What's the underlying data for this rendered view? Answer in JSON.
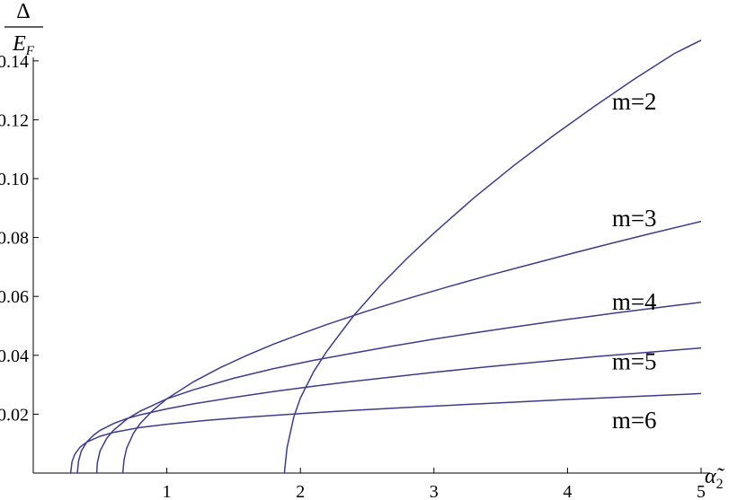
{
  "chart_data": {
    "type": "line",
    "xlabel_symbol": "α̃",
    "xlabel_subscript": "2",
    "ylabel_numerator": "Δ",
    "ylabel_denominator_main": "E",
    "ylabel_denominator_sub": "F",
    "xlim": [
      0,
      5
    ],
    "ylim": [
      0,
      0.15
    ],
    "x_ticks": [
      {
        "value": 1,
        "label": "1"
      },
      {
        "value": 2,
        "label": "2"
      },
      {
        "value": 3,
        "label": "3"
      },
      {
        "value": 4,
        "label": "4"
      },
      {
        "value": 5,
        "label": "5"
      }
    ],
    "y_ticks": [
      {
        "value": 0.02,
        "label": "0.02"
      },
      {
        "value": 0.04,
        "label": "0.04"
      },
      {
        "value": 0.06,
        "label": "0.06"
      },
      {
        "value": 0.08,
        "label": "0.08"
      },
      {
        "value": 0.1,
        "label": "0.10"
      },
      {
        "value": 0.12,
        "label": "0.12"
      },
      {
        "value": 0.14,
        "label": "0.14"
      }
    ],
    "series": [
      {
        "name": "m=2",
        "label_anchor": {
          "x": 4.5,
          "y": 0.1235
        },
        "x": [
          1.88,
          1.9,
          1.95,
          2.0,
          2.1,
          2.2,
          2.4,
          2.6,
          2.8,
          3.0,
          3.3,
          3.6,
          3.9,
          4.2,
          4.5,
          4.8,
          5.0
        ],
        "y": [
          0,
          0.0085,
          0.019,
          0.0255,
          0.0345,
          0.0415,
          0.0535,
          0.0638,
          0.073,
          0.0815,
          0.0935,
          0.1045,
          0.1148,
          0.1245,
          0.1338,
          0.1425,
          0.147
        ]
      },
      {
        "name": "m=3",
        "label_anchor": {
          "x": 4.5,
          "y": 0.0838
        },
        "x": [
          0.67,
          0.68,
          0.7,
          0.75,
          0.8,
          0.9,
          1.0,
          1.2,
          1.4,
          1.6,
          1.8,
          2.0,
          2.2,
          2.5,
          2.8,
          3.1,
          3.4,
          3.7,
          4.0,
          4.3,
          4.6,
          5.0
        ],
        "y": [
          0,
          0.0045,
          0.0085,
          0.0135,
          0.0168,
          0.0215,
          0.0252,
          0.031,
          0.0358,
          0.04,
          0.0438,
          0.0472,
          0.0505,
          0.055,
          0.0592,
          0.0632,
          0.067,
          0.0706,
          0.0742,
          0.0777,
          0.0811,
          0.0855
        ]
      },
      {
        "name": "m=4",
        "label_anchor": {
          "x": 4.5,
          "y": 0.0555
        },
        "x": [
          0.475,
          0.48,
          0.5,
          0.55,
          0.6,
          0.7,
          0.8,
          1.0,
          1.2,
          1.5,
          1.8,
          2.1,
          2.4,
          2.7,
          3.0,
          3.3,
          3.6,
          4.0,
          4.4,
          4.8,
          5.0
        ],
        "y": [
          0,
          0.0035,
          0.0075,
          0.0118,
          0.0145,
          0.0183,
          0.021,
          0.0252,
          0.0283,
          0.0322,
          0.0355,
          0.0383,
          0.0408,
          0.0432,
          0.0455,
          0.0476,
          0.0496,
          0.0522,
          0.0546,
          0.0569,
          0.058
        ]
      },
      {
        "name": "m=5",
        "label_anchor": {
          "x": 4.5,
          "y": 0.0352
        },
        "x": [
          0.33,
          0.34,
          0.36,
          0.4,
          0.45,
          0.5,
          0.6,
          0.7,
          0.8,
          1.0,
          1.2,
          1.5,
          1.8,
          2.1,
          2.4,
          2.7,
          3.0,
          3.4,
          3.8,
          4.2,
          4.6,
          5.0
        ],
        "y": [
          0,
          0.0042,
          0.0075,
          0.0105,
          0.0128,
          0.0145,
          0.0168,
          0.0185,
          0.0198,
          0.0218,
          0.0235,
          0.0257,
          0.0277,
          0.0295,
          0.0312,
          0.0327,
          0.0342,
          0.0361,
          0.0378,
          0.0395,
          0.041,
          0.0425
        ]
      },
      {
        "name": "m=6",
        "label_anchor": {
          "x": 4.5,
          "y": 0.0152
        },
        "x": [
          0.28,
          0.29,
          0.31,
          0.35,
          0.4,
          0.5,
          0.6,
          0.8,
          1.0,
          1.3,
          1.6,
          2.0,
          2.4,
          2.8,
          3.2,
          3.6,
          4.0,
          4.4,
          4.8,
          5.0
        ],
        "y": [
          0,
          0.0038,
          0.0063,
          0.0088,
          0.0105,
          0.0125,
          0.0138,
          0.0155,
          0.0166,
          0.0179,
          0.019,
          0.0202,
          0.0213,
          0.0223,
          0.0232,
          0.0241,
          0.025,
          0.0258,
          0.0266,
          0.027
        ]
      }
    ]
  }
}
